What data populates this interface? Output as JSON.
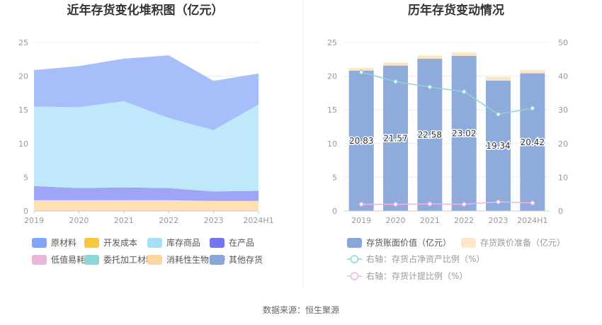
{
  "chart_data": [
    {
      "type": "area",
      "stacked": true,
      "title": "近年存货变化堆积图（亿元）",
      "categories": [
        "2019",
        "2020",
        "2021",
        "2022",
        "2023",
        "2024H1"
      ],
      "ylim": [
        0,
        25
      ],
      "yticks": [
        "0",
        "5",
        "10",
        "15",
        "20",
        "25"
      ],
      "series": [
        {
          "name": "消耗性生物资产",
          "color": "#FFE0B2",
          "values": [
            1.6,
            1.6,
            1.6,
            1.6,
            1.5,
            1.5
          ]
        },
        {
          "name": "在产品",
          "color": "#A0A4F7",
          "values": [
            2.1,
            1.8,
            1.9,
            1.8,
            1.4,
            1.5
          ]
        },
        {
          "name": "库存商品",
          "color": "#BFE8FA",
          "values": [
            11.8,
            12.0,
            12.8,
            10.4,
            9.1,
            12.8
          ]
        },
        {
          "name": "原材料",
          "color": "#A6BEFA",
          "values": [
            5.4,
            6.1,
            6.3,
            9.3,
            7.3,
            4.6
          ]
        }
      ],
      "legend": [
        {
          "name": "原材料",
          "color": "#7FA6F8"
        },
        {
          "name": "开发成本",
          "color": "#FAC53F"
        },
        {
          "name": "库存商品",
          "color": "#A7DFF6"
        },
        {
          "name": "在产品",
          "color": "#7275EE"
        },
        {
          "name": "低值易耗品",
          "color": "#E9B5DB"
        },
        {
          "name": "委托加工材料",
          "color": "#8ED5D6"
        },
        {
          "name": "消耗性生物资产",
          "color": "#FDD7A2"
        },
        {
          "name": "其他存货",
          "color": "#8AA7DA"
        }
      ]
    },
    {
      "type": "bar",
      "title": "历年存货变动情况",
      "categories": [
        "2019",
        "2020",
        "2021",
        "2022",
        "2023",
        "2024H1"
      ],
      "ylim": [
        0,
        25
      ],
      "yticks": [
        "0",
        "5",
        "10",
        "15",
        "20",
        "25"
      ],
      "y2lim": [
        0,
        50
      ],
      "y2ticks": [
        "0",
        "10",
        "20",
        "30",
        "40",
        "50"
      ],
      "series": [
        {
          "name": "存货账面价值（亿元）",
          "color": "#8FABDB",
          "values": [
            20.83,
            21.57,
            22.58,
            23.02,
            19.34,
            20.42
          ],
          "labels": [
            "20.83",
            "21.57",
            "22.58",
            "23.02",
            "19.34",
            "20.42"
          ]
        },
        {
          "name": "存货跌价准备（亿元）",
          "color": "#FBE6C3",
          "values": [
            0.42,
            0.45,
            0.48,
            0.48,
            0.55,
            0.5
          ]
        }
      ],
      "lines": [
        {
          "name": "右轴：存货占净资产比例（%）",
          "color": "#8CD6D3",
          "axis": "right",
          "values": [
            41.2,
            38.4,
            36.8,
            35.4,
            28.7,
            30.5
          ]
        },
        {
          "name": "右轴：存货计提比例（%）",
          "color": "#EBB8DD",
          "axis": "right",
          "values": [
            2.0,
            2.0,
            2.1,
            2.0,
            2.7,
            2.4
          ]
        }
      ]
    }
  ],
  "footer": {
    "source": "数据来源：恒生聚源"
  }
}
